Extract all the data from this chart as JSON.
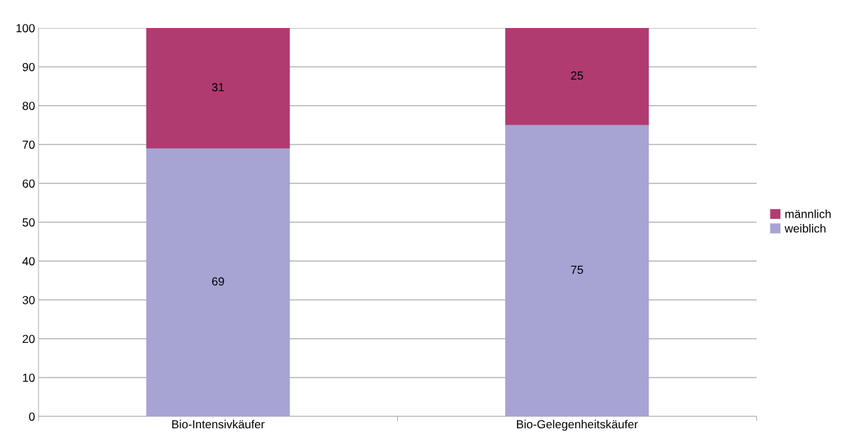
{
  "chart_data": {
    "type": "bar",
    "stacked": true,
    "categories": [
      "Bio-Intensivkäufer",
      "Bio-Gelegenheitskäufer"
    ],
    "series": [
      {
        "name": "weiblich",
        "color": "#a7a3d3",
        "values": [
          69,
          75
        ]
      },
      {
        "name": "männlich",
        "color": "#b03b70",
        "values": [
          31,
          25
        ]
      }
    ],
    "ylim": [
      0,
      100
    ],
    "yticks": [
      0,
      10,
      20,
      30,
      40,
      50,
      60,
      70,
      80,
      90,
      100
    ],
    "grid": "y",
    "legend": "right",
    "data_labels": true
  }
}
